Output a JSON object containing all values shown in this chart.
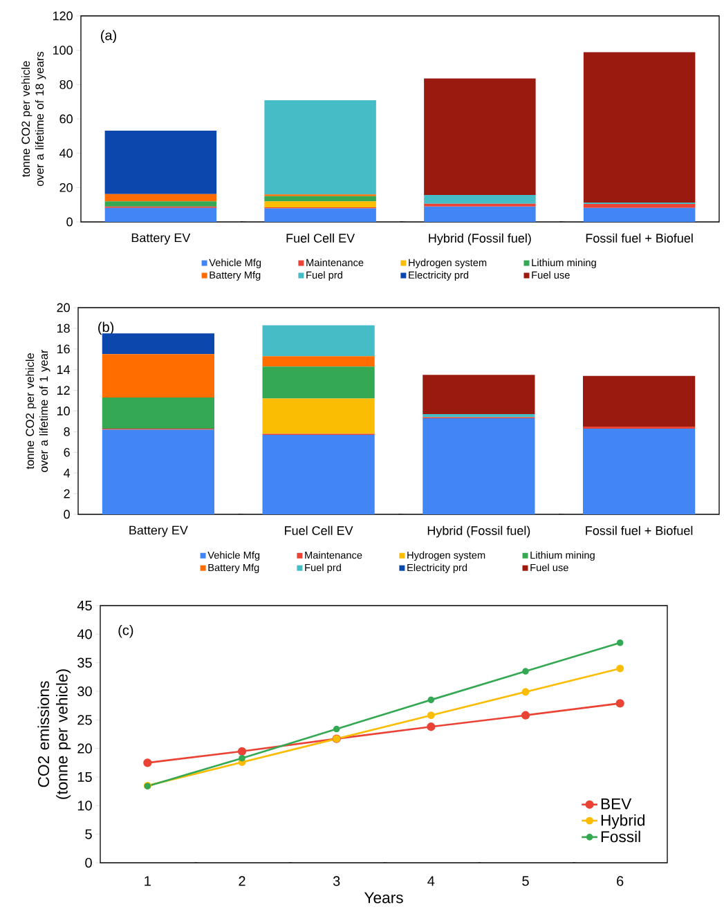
{
  "chart_data": [
    {
      "type": "bar",
      "stacked": true,
      "categories": [
        "Battery EV",
        "Fuel Cell EV",
        "Hybrid (Fossil fuel)",
        "Fossil fuel + Biofuel"
      ],
      "ylabel": "tonne CO2 per vehicle over a lifetime of 18 years",
      "ylim": [
        0,
        120
      ],
      "yticks": [
        0,
        20,
        40,
        60,
        80,
        100,
        120
      ],
      "legend": "bottom",
      "annotations": [
        "(a)"
      ],
      "series": [
        {
          "name": "Vehicle Mfg",
          "color": "#4285f4",
          "values": [
            8.2,
            7.8,
            9.0,
            8.2
          ]
        },
        {
          "name": "Maintenance",
          "color": "#ea4335",
          "values": [
            0.8,
            0.7,
            1.6,
            2.3
          ]
        },
        {
          "name": "Hydrogen system",
          "color": "#fbbc04",
          "values": [
            0,
            3.5,
            0,
            0
          ]
        },
        {
          "name": "Lithium mining",
          "color": "#34a853",
          "values": [
            3.0,
            3.0,
            0,
            0
          ]
        },
        {
          "name": "Battery Mfg",
          "color": "#ff6d01",
          "values": [
            4.2,
            1.0,
            0,
            0
          ]
        },
        {
          "name": "Fuel prd",
          "color": "#46bdc6",
          "values": [
            0,
            54.9,
            5.1,
            0.8
          ]
        },
        {
          "name": "Electricity prd",
          "color": "#0b47ad",
          "values": [
            37.0,
            0,
            0,
            0
          ]
        },
        {
          "name": "Fuel use",
          "color": "#9a1a10",
          "values": [
            0,
            0,
            67.9,
            87.6
          ]
        }
      ]
    },
    {
      "type": "bar",
      "stacked": true,
      "categories": [
        "Battery EV",
        "Fuel Cell EV",
        "Hybrid (Fossil fuel)",
        "Fossil fuel + Biofuel"
      ],
      "ylabel": "tonne CO2 per vehicle over a lifetime of 1 year",
      "ylim": [
        0,
        20
      ],
      "yticks": [
        0,
        2,
        4,
        6,
        8,
        10,
        12,
        14,
        16,
        18,
        20
      ],
      "legend": "bottom",
      "annotations": [
        "(b)"
      ],
      "series": [
        {
          "name": "Vehicle Mfg",
          "color": "#4285f4",
          "values": [
            8.2,
            7.7,
            9.3,
            8.3
          ]
        },
        {
          "name": "Maintenance",
          "color": "#ea4335",
          "values": [
            0.1,
            0.1,
            0.1,
            0.2
          ]
        },
        {
          "name": "Hydrogen system",
          "color": "#fbbc04",
          "values": [
            0,
            3.4,
            0,
            0
          ]
        },
        {
          "name": "Lithium mining",
          "color": "#34a853",
          "values": [
            3.0,
            3.1,
            0,
            0
          ]
        },
        {
          "name": "Battery Mfg",
          "color": "#ff6d01",
          "values": [
            4.2,
            1.0,
            0,
            0
          ]
        },
        {
          "name": "Fuel prd",
          "color": "#46bdc6",
          "values": [
            0,
            3.0,
            0.3,
            0
          ]
        },
        {
          "name": "Electricity prd",
          "color": "#0b47ad",
          "values": [
            2.0,
            0,
            0,
            0
          ]
        },
        {
          "name": "Fuel use",
          "color": "#9a1a10",
          "values": [
            0,
            0,
            3.8,
            4.9
          ]
        }
      ]
    },
    {
      "type": "line",
      "categories": [
        "1",
        "2",
        "3",
        "4",
        "5",
        "6"
      ],
      "xlabel": "Years",
      "ylabel": "CO2 emissions (tonne per vehicle)",
      "ylim": [
        0,
        45
      ],
      "yticks": [
        0,
        5,
        10,
        15,
        20,
        25,
        30,
        35,
        40,
        45
      ],
      "legend": "bottom right",
      "marker": "circle",
      "line_style": "solid",
      "annotations": [
        "(c)"
      ],
      "series": [
        {
          "name": "BEV",
          "color": "#ea4335",
          "values": [
            17.5,
            19.5,
            21.7,
            23.8,
            25.8,
            27.9
          ]
        },
        {
          "name": "Hybrid",
          "color": "#fbbc04",
          "values": [
            13.5,
            17.6,
            21.7,
            25.8,
            29.9,
            34.0
          ]
        },
        {
          "name": "Fossil",
          "color": "#34a853",
          "values": [
            13.4,
            18.3,
            23.4,
            28.5,
            33.5,
            38.5
          ]
        }
      ]
    }
  ]
}
